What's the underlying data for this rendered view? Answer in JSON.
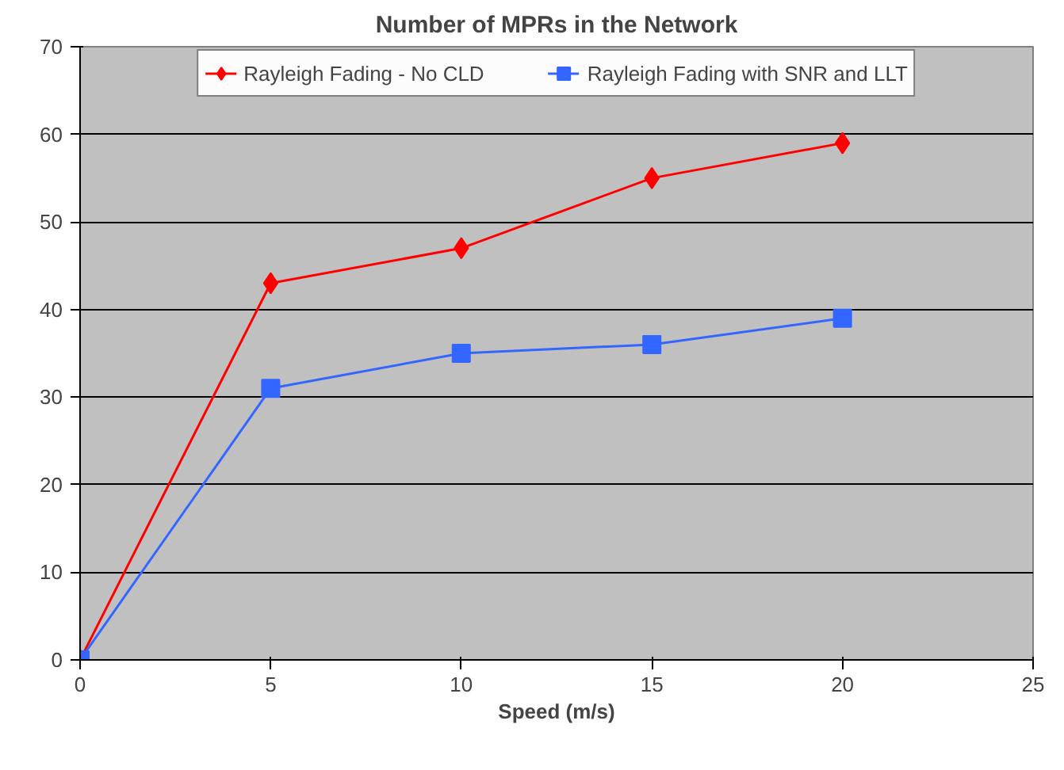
{
  "chart_data": {
    "type": "line",
    "title": "Number of MPRs in the Network",
    "xlabel": "Speed (m/s)",
    "x": [
      0,
      5,
      10,
      15,
      20
    ],
    "series": [
      {
        "name": "Rayleigh Fading - No CLD",
        "color": "#ff0000",
        "marker": "diamond",
        "values": [
          0,
          43,
          47,
          55,
          59
        ]
      },
      {
        "name": "Rayleigh Fading with SNR and LLT",
        "color": "#3366ff",
        "marker": "square",
        "values": [
          0,
          31,
          35,
          36,
          39
        ]
      }
    ],
    "xlim": [
      0,
      25
    ],
    "xticks": [
      0,
      5,
      10,
      15,
      20,
      25
    ],
    "ylim": [
      0,
      70
    ],
    "yticks": [
      0,
      10,
      20,
      30,
      40,
      50,
      60,
      70
    ],
    "grid": "y",
    "legend": "top",
    "line_style": "solid"
  }
}
